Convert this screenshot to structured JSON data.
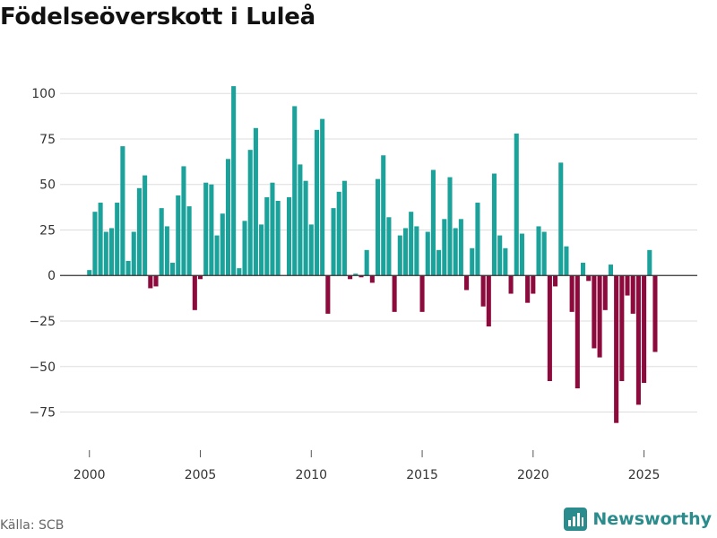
{
  "title": "Födelseöverskott i Luleå",
  "source": "Källa: SCB",
  "brand": "Newsworthy",
  "colors": {
    "positive": "#1aa29b",
    "negative": "#8c0a3c",
    "grid": "#dddddd",
    "zero_line": "#333333",
    "brand": "#2a8c8c"
  },
  "chart_data": {
    "type": "bar",
    "title": "Födelseöverskott i Luleå",
    "xlabel": "",
    "ylabel": "",
    "frequency": "quarterly",
    "x_start": 2000.0,
    "x_step": 0.25,
    "xlim": [
      1999.0,
      2027.4
    ],
    "ylim": [
      -91,
      107
    ],
    "x_ticks": [
      2000,
      2005,
      2010,
      2015,
      2020,
      2025
    ],
    "y_ticks": [
      -75,
      -50,
      -25,
      0,
      25,
      50,
      75,
      100
    ],
    "values": [
      3,
      35,
      40,
      24,
      26,
      40,
      71,
      8,
      24,
      48,
      55,
      -7,
      -6,
      37,
      27,
      7,
      44,
      60,
      38,
      -19,
      -2,
      51,
      50,
      22,
      34,
      64,
      104,
      4,
      30,
      69,
      81,
      28,
      43,
      51,
      41,
      0,
      43,
      93,
      61,
      52,
      28,
      80,
      86,
      -21,
      37,
      46,
      52,
      -2,
      1,
      -1,
      14,
      -4,
      53,
      66,
      32,
      -20,
      22,
      26,
      35,
      27,
      -20,
      24,
      58,
      14,
      31,
      54,
      26,
      31,
      -8,
      15,
      40,
      -17,
      -28,
      56,
      22,
      15,
      -10,
      78,
      23,
      -15,
      -10,
      27,
      24,
      -58,
      -6,
      62,
      16,
      -20,
      -62,
      7,
      -3,
      -40,
      -45,
      -19,
      6,
      -81,
      -58,
      -11,
      -21,
      -71,
      -59,
      14,
      -42
    ]
  }
}
